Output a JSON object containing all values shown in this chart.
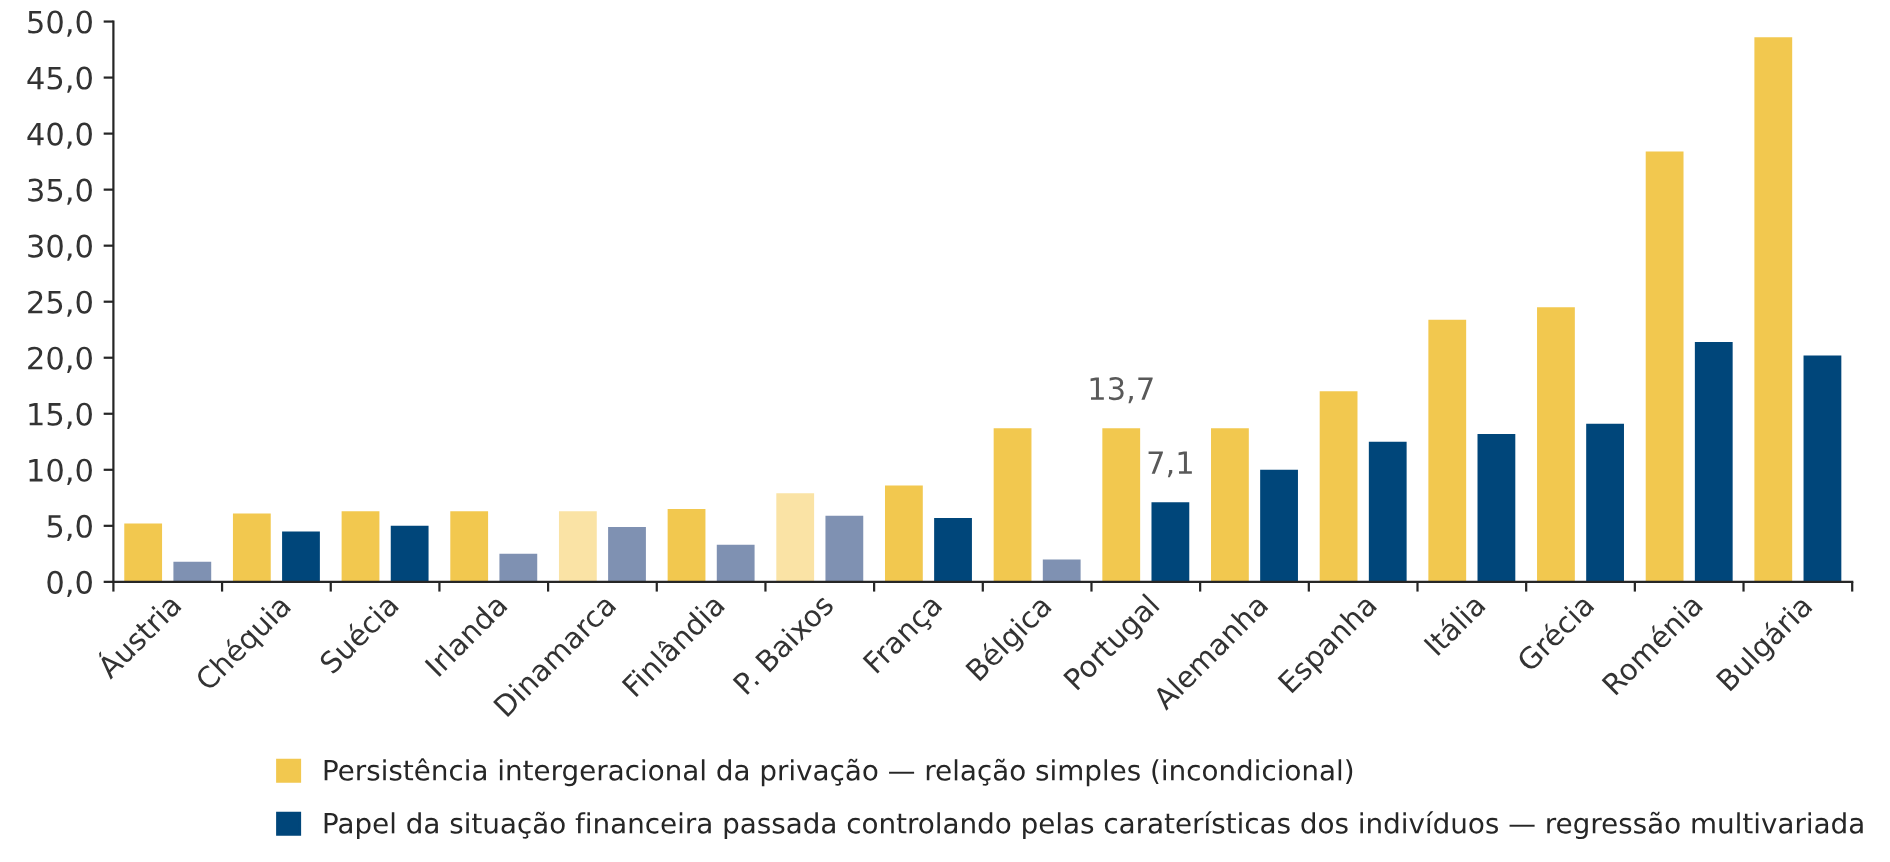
{
  "chart_data": {
    "type": "bar",
    "categories": [
      "Áustria",
      "Chéquia",
      "Suécia",
      "Irlanda",
      "Dinamarca",
      "Finlândia",
      "P. Baixos",
      "França",
      "Bélgica",
      "Portugal",
      "Alemanha",
      "Espanha",
      "Itália",
      "Grécia",
      "Roménia",
      "Bulgária"
    ],
    "series": [
      {
        "name": "Persistência intergeracional da privação — relação simples (incondicional)",
        "color": "#f2c84f",
        "colors": [
          "#f2c84f",
          "#f2c84f",
          "#f2c84f",
          "#f2c84f",
          "#fae3a5",
          "#f2c84f",
          "#fae3a5",
          "#f2c84f",
          "#f2c84f",
          "#f2c84f",
          "#f2c84f",
          "#f2c84f",
          "#f2c84f",
          "#f2c84f",
          "#f2c84f",
          "#f2c84f"
        ],
        "values": [
          5.2,
          6.1,
          6.3,
          6.3,
          6.3,
          6.5,
          7.9,
          8.6,
          13.7,
          13.7,
          13.7,
          17.0,
          23.4,
          24.5,
          38.4,
          48.6
        ],
        "value_labels": [
          null,
          null,
          null,
          null,
          null,
          null,
          null,
          null,
          null,
          "13,7",
          null,
          null,
          null,
          null,
          null,
          null
        ]
      },
      {
        "name": "Papel da situação financeira passada controlando pelas caraterísticas dos indivíduos — regressão multivariada",
        "color": "#00467a",
        "colors": [
          "#7f91b2",
          "#00467a",
          "#00467a",
          "#7f91b2",
          "#7f91b2",
          "#7f91b2",
          "#7f91b2",
          "#00467a",
          "#7f91b2",
          "#00467a",
          "#00467a",
          "#00467a",
          "#00467a",
          "#00467a",
          "#00467a",
          "#00467a"
        ],
        "values": [
          1.8,
          4.5,
          5.0,
          2.5,
          4.9,
          3.3,
          5.9,
          5.7,
          2.0,
          7.1,
          10.0,
          12.5,
          13.2,
          14.1,
          21.4,
          20.2
        ],
        "value_labels": [
          null,
          null,
          null,
          null,
          null,
          null,
          null,
          null,
          null,
          "7,1",
          null,
          null,
          null,
          null,
          null,
          null
        ]
      }
    ],
    "ylim": [
      0,
      50
    ],
    "yticks": [
      {
        "value": 0,
        "label": "0,0"
      },
      {
        "value": 5,
        "label": "5,0"
      },
      {
        "value": 10,
        "label": "10,0"
      },
      {
        "value": 15,
        "label": "15,0"
      },
      {
        "value": 20,
        "label": "20,0"
      },
      {
        "value": 25,
        "label": "25,0"
      },
      {
        "value": 30,
        "label": "30,0"
      },
      {
        "value": 35,
        "label": "35,0"
      },
      {
        "value": 40,
        "label": "40,0"
      },
      {
        "value": 45,
        "label": "45,0"
      },
      {
        "value": 50,
        "label": "50,0"
      }
    ],
    "grid": false,
    "legend": "bottom"
  }
}
